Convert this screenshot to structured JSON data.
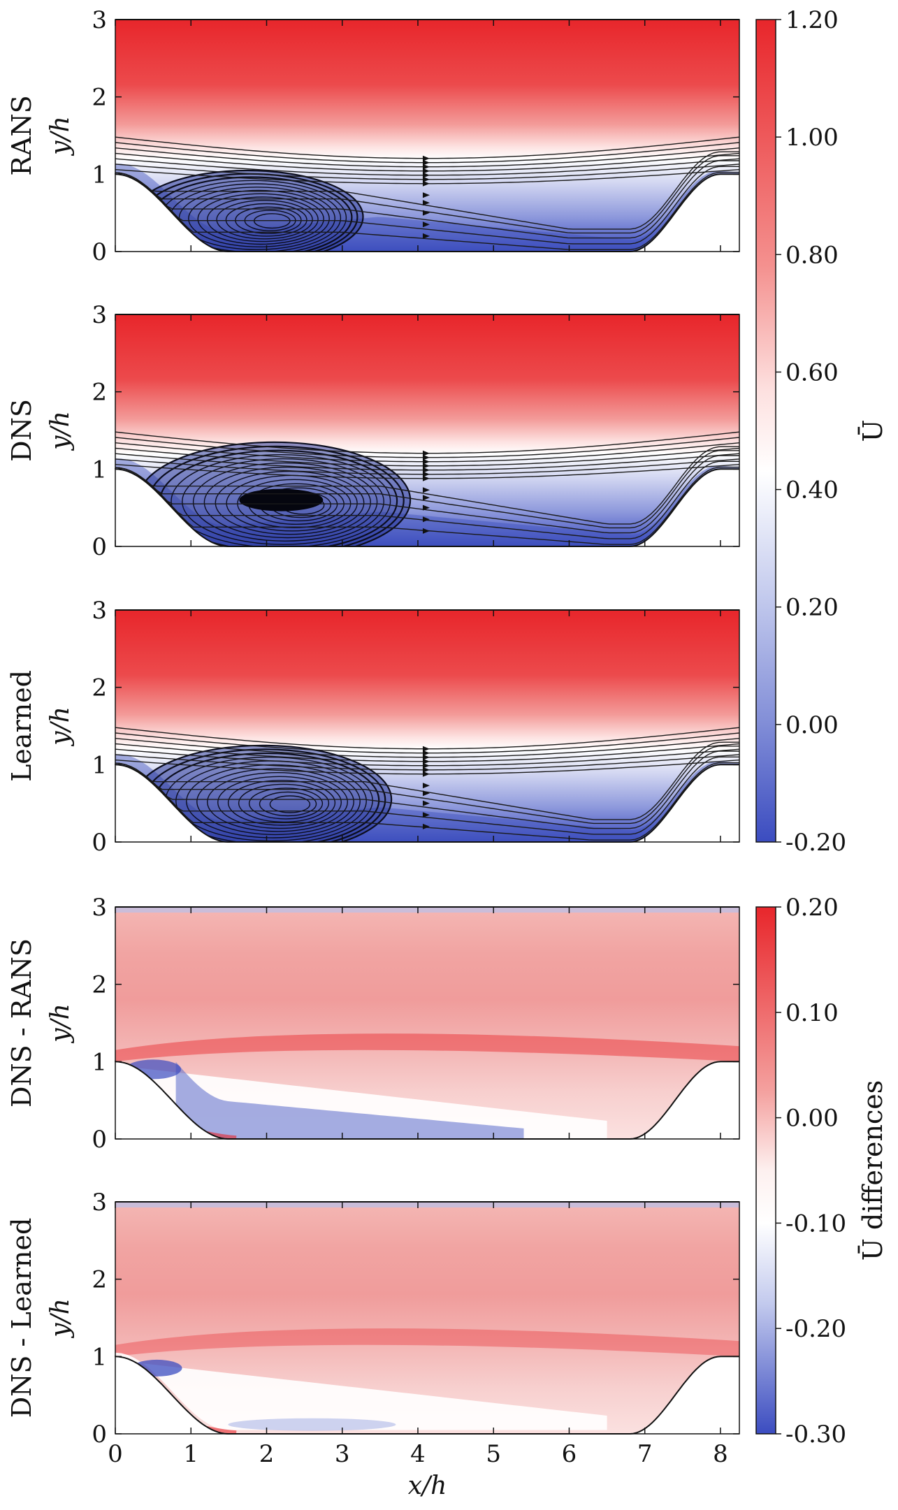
{
  "chart_data": [
    {
      "type": "heatmap",
      "panel": "rans",
      "row_label": "RANS",
      "ylabel": "y/h",
      "xlim": [
        0,
        8.25
      ],
      "ylim": [
        0,
        3
      ],
      "yticks": [
        "0",
        "1",
        "2",
        "3"
      ],
      "streamlines": true,
      "colorbar": "u_bar",
      "recirculation": {
        "center_x": 1.75,
        "center_y": 0.45,
        "extent_x": [
          0.55,
          3.6
        ]
      }
    },
    {
      "type": "heatmap",
      "panel": "dns",
      "row_label": "DNS",
      "ylabel": "y/h",
      "xlim": [
        0,
        8.25
      ],
      "ylim": [
        0,
        3
      ],
      "yticks": [
        "0",
        "1",
        "2",
        "3"
      ],
      "streamlines": true,
      "colorbar": "u_bar",
      "recirculation": {
        "center_x": 2.1,
        "center_y": 0.6,
        "extent_x": [
          0.5,
          4.1
        ]
      }
    },
    {
      "type": "heatmap",
      "panel": "learned",
      "row_label": "Learned",
      "ylabel": "y/h",
      "xlim": [
        0,
        8.25
      ],
      "ylim": [
        0,
        3
      ],
      "yticks": [
        "0",
        "1",
        "2",
        "3"
      ],
      "streamlines": true,
      "colorbar": "u_bar",
      "recirculation": {
        "center_x": 1.95,
        "center_y": 0.55,
        "extent_x": [
          0.5,
          3.9
        ]
      }
    },
    {
      "type": "heatmap",
      "panel": "dns_minus_rans",
      "row_label": "DNS - RANS",
      "ylabel": "y/h",
      "xlim": [
        0,
        8.25
      ],
      "ylim": [
        0,
        3
      ],
      "yticks": [
        "0",
        "1",
        "2",
        "3"
      ],
      "streamlines": false,
      "colorbar": "u_diff"
    },
    {
      "type": "heatmap",
      "panel": "dns_minus_learned",
      "row_label": "DNS - Learned",
      "ylabel": "y/h",
      "xlabel": "x/h",
      "xlim": [
        0,
        8.25
      ],
      "ylim": [
        0,
        3
      ],
      "xticks": [
        "0",
        "1",
        "2",
        "3",
        "4",
        "5",
        "6",
        "7",
        "8"
      ],
      "yticks": [
        "0",
        "1",
        "2",
        "3"
      ],
      "streamlines": false,
      "colorbar": "u_diff"
    }
  ],
  "colorbars": {
    "u_bar": {
      "label": "Ū",
      "range": [
        -0.2,
        1.2
      ],
      "ticks": [
        "1.20",
        "1.00",
        "0.80",
        "0.60",
        "0.40",
        "0.20",
        "0.00",
        "-0.20"
      ],
      "colors": [
        "#3b4cc0",
        "#ffffff",
        "#e8262b"
      ]
    },
    "u_diff": {
      "label": "Ū differences",
      "range": [
        -0.3,
        0.2
      ],
      "ticks": [
        "0.20",
        "0.10",
        "0.00",
        "-0.10",
        "-0.20",
        "-0.30"
      ],
      "colors": [
        "#3b4cc0",
        "#ffffff",
        "#e8262b"
      ]
    }
  },
  "x_axis": {
    "label": "x/h"
  }
}
